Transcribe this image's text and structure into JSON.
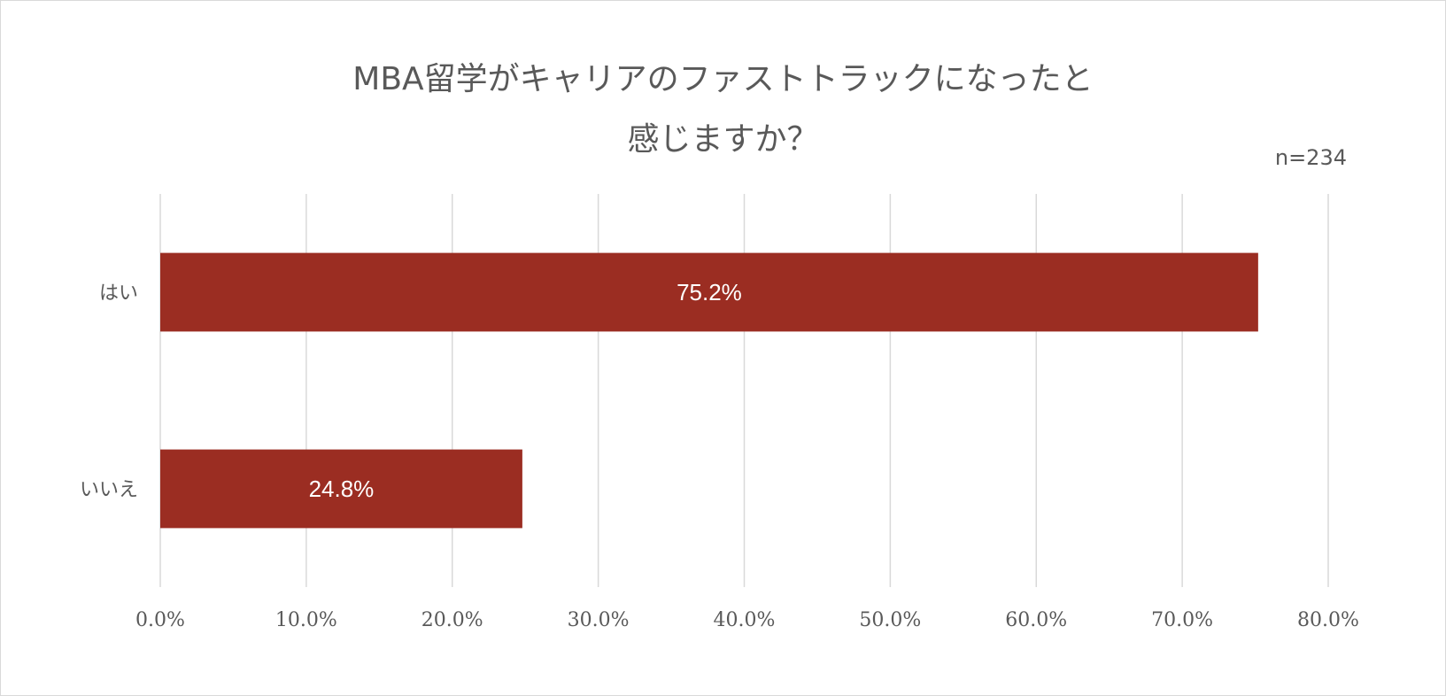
{
  "chart_data": {
    "type": "bar",
    "orientation": "horizontal",
    "title_line1": "MBA留学がキャリアのファストトラックになったと",
    "title_line2": "感じますか？",
    "sample_size": "n=234",
    "categories": [
      "はい",
      "いいえ"
    ],
    "values": [
      75.2,
      24.8
    ],
    "data_labels": [
      "75.2%",
      "24.8%"
    ],
    "xlim": [
      0,
      80
    ],
    "x_ticks": [
      "0.0%",
      "10.0%",
      "20.0%",
      "30.0%",
      "40.0%",
      "50.0%",
      "60.0%",
      "70.0%",
      "80.0%"
    ],
    "grid": true,
    "bar_color": "#9b2d22",
    "grid_color": "#d9d9d9"
  }
}
